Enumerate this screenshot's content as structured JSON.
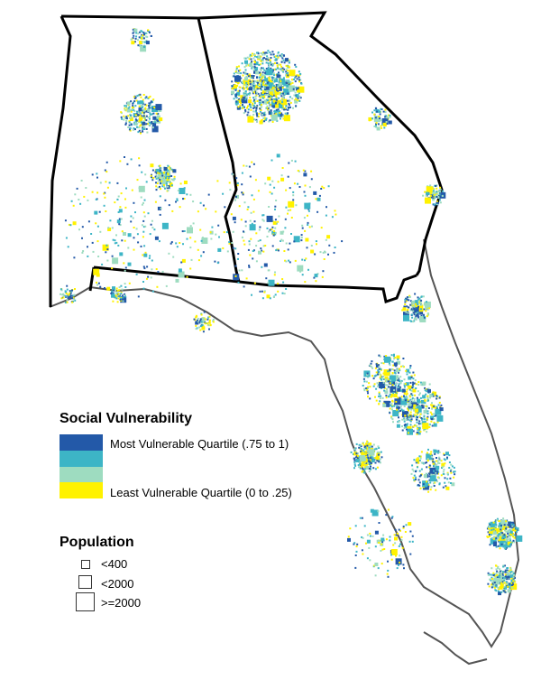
{
  "map": {
    "colors": {
      "most_vulnerable": "#2359a8",
      "second_quartile": "#3db5c6",
      "third_quartile": "#9edcc0",
      "least_vulnerable": "#fff200",
      "state_border": "#000000",
      "coast": "#555555"
    }
  },
  "legend": {
    "social": {
      "title": "Social Vulnerability",
      "most_label": "Most Vulnerable Quartile (.75 to 1)",
      "least_label": "Least Vulnerable Quartile (0 to .25)"
    },
    "population": {
      "title": "Population",
      "small_label": "<400",
      "medium_label": "<2000",
      "large_label": ">=2000"
    }
  }
}
